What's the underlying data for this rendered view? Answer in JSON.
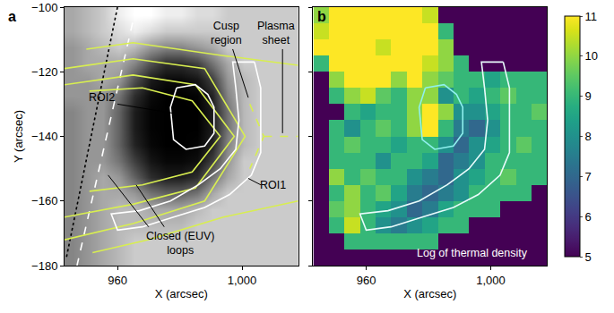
{
  "chart_data": [
    {
      "type": "heatmap",
      "title": "a",
      "x_label": "X (arcsec)",
      "y_label": "Y (arcsec)",
      "color": "gray",
      "grid": false,
      "xlim": [
        943,
        1018
      ],
      "ylim": [
        -180,
        -100
      ],
      "xticks": [
        960,
        {
          "value": 1000,
          "label": "1,000"
        }
      ],
      "yticks": [
        {
          "value": -180,
          "label": "−180"
        },
        {
          "value": -160,
          "label": "−160"
        },
        {
          "value": -140,
          "label": "−140"
        },
        {
          "value": -120,
          "label": "−120"
        },
        {
          "value": -100,
          "label": "−100"
        }
      ],
      "x": [
        945.5,
        950.5,
        955.5,
        960.5,
        965.5,
        970.5,
        975.5,
        980.5,
        985.5,
        990.5,
        995.5,
        1000.5,
        1005.5,
        1010.5,
        1015.5
      ],
      "y": [
        -102.5,
        -107.5,
        -112.5,
        -117.5,
        -122.5,
        -127.5,
        -132.5,
        -137.5,
        -142.5,
        -147.5,
        -152.5,
        -157.5,
        -162.5,
        -167.5,
        -172.5,
        -177.5
      ],
      "z": [
        [
          0.5,
          0.55,
          0.6,
          0.7,
          0.75,
          0.75,
          0.7,
          0.7,
          0.65,
          0.65,
          0.6,
          0.6,
          0.6,
          0.6,
          0.6
        ],
        [
          0.5,
          0.55,
          0.6,
          0.65,
          0.7,
          0.65,
          0.6,
          0.6,
          0.6,
          0.6,
          0.6,
          0.6,
          0.6,
          0.6,
          0.6
        ],
        [
          0.45,
          0.5,
          0.55,
          0.6,
          0.55,
          0.45,
          0.4,
          0.4,
          0.45,
          0.5,
          0.6,
          0.6,
          0.6,
          0.6,
          0.6
        ],
        [
          0.45,
          0.5,
          0.5,
          0.5,
          0.4,
          0.25,
          0.15,
          0.15,
          0.2,
          0.35,
          0.5,
          0.6,
          0.6,
          0.6,
          0.6
        ],
        [
          0.45,
          0.45,
          0.5,
          0.45,
          0.25,
          0.1,
          0.05,
          0.05,
          0.08,
          0.2,
          0.45,
          0.55,
          0.6,
          0.6,
          0.6
        ],
        [
          0.45,
          0.45,
          0.45,
          0.35,
          0.15,
          0.05,
          0.02,
          0.02,
          0.03,
          0.12,
          0.4,
          0.55,
          0.6,
          0.6,
          0.6
        ],
        [
          0.4,
          0.45,
          0.45,
          0.3,
          0.1,
          0.03,
          0.02,
          0.02,
          0.02,
          0.1,
          0.35,
          0.55,
          0.6,
          0.6,
          0.6
        ],
        [
          0.4,
          0.45,
          0.45,
          0.3,
          0.1,
          0.03,
          0.02,
          0.02,
          0.02,
          0.1,
          0.35,
          0.55,
          0.6,
          0.6,
          0.6
        ],
        [
          0.4,
          0.45,
          0.45,
          0.3,
          0.12,
          0.04,
          0.02,
          0.02,
          0.03,
          0.12,
          0.4,
          0.55,
          0.6,
          0.6,
          0.6
        ],
        [
          0.4,
          0.45,
          0.45,
          0.35,
          0.2,
          0.08,
          0.04,
          0.04,
          0.06,
          0.2,
          0.45,
          0.6,
          0.6,
          0.6,
          0.6
        ],
        [
          0.4,
          0.45,
          0.5,
          0.45,
          0.3,
          0.15,
          0.1,
          0.1,
          0.15,
          0.35,
          0.5,
          0.6,
          0.6,
          0.6,
          0.6
        ],
        [
          0.4,
          0.45,
          0.5,
          0.5,
          0.45,
          0.35,
          0.3,
          0.3,
          0.35,
          0.5,
          0.6,
          0.6,
          0.6,
          0.6,
          0.6
        ],
        [
          0.4,
          0.45,
          0.5,
          0.55,
          0.55,
          0.5,
          0.5,
          0.5,
          0.55,
          0.6,
          0.6,
          0.6,
          0.6,
          0.6,
          0.6
        ],
        [
          0.4,
          0.45,
          0.5,
          0.55,
          0.55,
          0.55,
          0.55,
          0.55,
          0.6,
          0.6,
          0.6,
          0.6,
          0.6,
          0.6,
          0.6
        ],
        [
          0.4,
          0.45,
          0.5,
          0.55,
          0.6,
          0.6,
          0.6,
          0.6,
          0.6,
          0.6,
          0.6,
          0.6,
          0.6,
          0.6,
          0.6
        ],
        [
          0.4,
          0.45,
          0.5,
          0.55,
          0.6,
          0.6,
          0.6,
          0.6,
          0.6,
          0.6,
          0.6,
          0.6,
          0.6,
          0.6,
          0.6
        ]
      ],
      "series": [
        {
          "type": "line",
          "color": "#ffffff",
          "line_style": "dashed",
          "x": [
            966,
            947
          ],
          "y": [
            -100,
            -180
          ]
        },
        {
          "type": "line",
          "color": "#000000",
          "line_style": "dotted",
          "x": [
            960,
            943.5
          ],
          "y": [
            -100,
            -178
          ]
        },
        {
          "type": "line",
          "color": "#d8ee50",
          "line_style": "solid",
          "x": [
            951,
            968,
            984,
            993,
            984,
            968,
            951
          ],
          "y": [
            -126,
            -125,
            -129,
            -140,
            -151,
            -155,
            -157
          ]
        },
        {
          "type": "line",
          "color": "#d8ee50",
          "line_style": "solid",
          "x": [
            943,
            965,
            985,
            997.5,
            985,
            965,
            943
          ],
          "y": [
            -124,
            -121,
            -124,
            -140,
            -156,
            -161,
            -165
          ]
        },
        {
          "type": "line",
          "color": "#d8ee50",
          "line_style": "solid",
          "x": [
            943,
            965,
            988,
            1001,
            988,
            965,
            943
          ],
          "y": [
            -119,
            -116,
            -119,
            -140,
            -160,
            -167,
            -172
          ]
        },
        {
          "type": "line",
          "color": "#d8ee50",
          "line_style": "solid",
          "x": [
            950,
            965,
            994,
            1018
          ],
          "y": [
            -113,
            -111,
            -115,
            -118
          ]
        },
        {
          "type": "line",
          "color": "#d8ee50",
          "line_style": "solid",
          "x": [
            952,
            970,
            994,
            1018
          ],
          "y": [
            -176,
            -172,
            -165,
            -160
          ]
        },
        {
          "type": "line",
          "color": "#d8ee50",
          "line_style": "dashed",
          "x": [
            1002.5,
            1007,
            1002.5
          ],
          "y": [
            -130,
            -140,
            -150
          ]
        },
        {
          "type": "line",
          "color": "#d8ee50",
          "line_style": "dashed",
          "x": [
            1007,
            1018
          ],
          "y": [
            -140,
            -140
          ]
        },
        {
          "type": "line",
          "color": "#ffffff",
          "line_style": "solid",
          "x": [
            979,
            985,
            989,
            991,
            991,
            988,
            982,
            978,
            977,
            979
          ],
          "y": [
            -125,
            -124,
            -127,
            -131,
            -139,
            -143,
            -144,
            -141,
            -131,
            -125
          ]
        },
        {
          "type": "line",
          "color": "#ffffff",
          "line_style": "solid",
          "x": [
            1004,
            1006,
            1006,
            1003,
            996,
            988,
            978,
            968,
            960,
            958,
            967,
            977,
            986,
            993,
            998,
            999,
            998,
            997,
            1004
          ],
          "y": [
            -117,
            -125,
            -145,
            -152,
            -158,
            -162,
            -165,
            -168,
            -169,
            -164,
            -163,
            -160,
            -155,
            -150,
            -144,
            -135,
            -125,
            -117,
            -117
          ]
        }
      ],
      "annotations": [
        {
          "text": [
            "ROI2"
          ],
          "color": "#000000",
          "at": [
            955,
            -128
          ],
          "pointers": [
            [
              [
                960,
                -130
              ],
              [
                979,
                -133
              ]
            ]
          ]
        },
        {
          "text": [
            "Cusp",
            "region"
          ],
          "color": "#000000",
          "at": [
            995,
            -108
          ],
          "pointers": [
            [
              [
                997,
                -113
              ],
              [
                1002,
                -128
              ]
            ]
          ]
        },
        {
          "text": [
            "Plasma",
            "sheet"
          ],
          "color": "#000000",
          "at": [
            1011,
            -108
          ],
          "pointers": [
            [
              [
                1013,
                -113
              ],
              [
                1013,
                -139
              ]
            ]
          ]
        },
        {
          "text": [
            "ROI1"
          ],
          "color": "#000000",
          "at": [
            1010,
            -155
          ],
          "pointers": [
            [
              [
                1006,
                -155
              ],
              [
                1002,
                -153
              ]
            ]
          ]
        },
        {
          "text": [
            "Closed (EUV)",
            "loops"
          ],
          "color": "#000000",
          "at": [
            980,
            -173
          ],
          "pointers": [
            [
              [
                970,
                -168
              ],
              [
                957,
                -152
              ]
            ],
            [
              [
                975,
                -168
              ],
              [
                966,
                -155
              ]
            ]
          ]
        }
      ]
    },
    {
      "type": "heatmap",
      "title": "b",
      "x_label": "X (arcsec)",
      "color": "viridis",
      "grid": false,
      "tick_labels": "x",
      "xlim": [
        943,
        1018
      ],
      "ylim": [
        -180,
        -100
      ],
      "xticks": [
        960,
        {
          "value": 1000,
          "label": "1,000"
        }
      ],
      "yticks": [
        -180,
        -160,
        -140,
        -120,
        -100
      ],
      "colorbar": {
        "range": [
          5,
          11
        ],
        "ticks": [
          5,
          6,
          7,
          8,
          9,
          10,
          11
        ]
      },
      "x": [
        945.5,
        950.5,
        955.5,
        960.5,
        965.5,
        970.5,
        975.5,
        980.5,
        985.5,
        990.5,
        995.5,
        1000.5,
        1005.5,
        1010.5,
        1015.5
      ],
      "y": [
        -102.5,
        -107.5,
        -112.5,
        -117.5,
        -122.5,
        -127.5,
        -132.5,
        -137.5,
        -142.5,
        -147.5,
        -152.5,
        -157.5,
        -162.5,
        -167.5,
        -172.5,
        -177.5
      ],
      "z": [
        [
          10,
          11,
          11,
          11,
          11,
          11,
          11,
          10.5,
          5,
          5,
          5,
          5,
          5,
          5,
          5
        ],
        [
          10.5,
          11,
          11,
          11,
          11,
          11,
          11,
          11,
          9,
          5,
          5,
          5,
          5,
          5,
          5
        ],
        [
          11,
          11,
          11,
          11,
          10.5,
          11,
          11,
          11,
          10,
          5,
          5,
          5,
          5,
          5,
          5
        ],
        [
          9,
          11,
          11,
          11,
          11,
          11,
          11,
          10.5,
          10,
          9,
          5,
          5,
          5,
          5,
          5
        ],
        [
          5,
          10,
          11,
          11,
          11,
          10,
          11,
          10,
          9.5,
          9,
          9,
          8.5,
          9,
          9,
          9
        ],
        [
          5,
          9,
          10,
          10.5,
          9.5,
          9,
          10,
          10,
          8,
          9,
          8.5,
          9,
          9.5,
          9,
          9
        ],
        [
          5,
          5,
          9,
          8.5,
          9,
          9,
          10,
          11,
          10,
          8,
          8,
          8.5,
          9,
          9,
          9.5
        ],
        [
          5,
          9,
          8,
          9,
          9.5,
          9,
          10,
          11,
          9,
          7.5,
          7,
          8,
          9,
          9,
          9
        ],
        [
          5,
          9,
          9.5,
          9,
          9,
          8.5,
          9,
          9,
          8,
          7,
          8,
          8.5,
          9,
          9.5,
          9
        ],
        [
          5,
          9,
          9,
          9,
          8,
          9,
          9,
          8.5,
          7,
          7.5,
          8,
          9,
          9,
          9,
          9
        ],
        [
          5,
          10,
          9,
          9.5,
          9,
          9,
          8,
          7.5,
          7,
          8,
          8.5,
          9,
          9.5,
          9,
          9
        ],
        [
          5,
          9,
          10,
          9,
          9.5,
          8.5,
          7.5,
          7,
          7.5,
          8,
          9,
          9,
          9,
          9,
          5
        ],
        [
          5,
          9.5,
          10,
          9,
          8.5,
          8,
          7,
          7.5,
          8.5,
          9,
          9,
          9,
          5,
          5,
          5
        ],
        [
          5,
          9,
          10.5,
          9,
          8,
          7.5,
          8,
          8.5,
          9,
          9,
          5,
          5,
          5,
          5,
          5
        ],
        [
          5,
          5,
          9,
          9,
          9,
          9,
          9,
          9,
          5,
          5,
          5,
          5,
          5,
          5,
          5
        ],
        [
          5,
          5,
          5,
          5,
          5,
          5,
          5,
          5,
          5,
          5,
          5,
          5,
          5,
          5,
          5
        ]
      ],
      "series": [
        {
          "type": "line",
          "color": "#8ff0ee",
          "line_style": "solid",
          "x": [
            979,
            985,
            989,
            991,
            991,
            988,
            982,
            978,
            977,
            979
          ],
          "y": [
            -125,
            -124,
            -127,
            -131,
            -139,
            -143,
            -144,
            -141,
            -131,
            -125
          ]
        },
        {
          "type": "line",
          "color": "#e8fbfb",
          "line_style": "solid",
          "x": [
            1004,
            1006,
            1006,
            1003,
            996,
            988,
            978,
            968,
            960,
            958,
            967,
            977,
            986,
            993,
            998,
            999,
            998,
            997,
            1004
          ],
          "y": [
            -117,
            -125,
            -145,
            -152,
            -158,
            -162,
            -165,
            -168,
            -169,
            -164,
            -163,
            -160,
            -155,
            -150,
            -144,
            -135,
            -125,
            -117,
            -117
          ]
        }
      ],
      "annotations": [
        {
          "text": [
            "Log of thermal density"
          ],
          "color": "#ffffff",
          "at": [
            994,
            -176
          ],
          "pointers": []
        }
      ]
    }
  ]
}
